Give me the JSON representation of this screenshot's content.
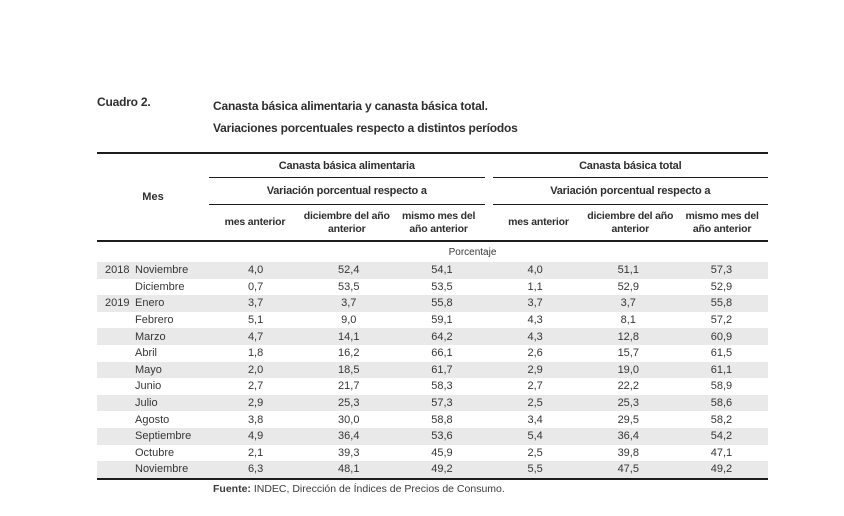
{
  "document": {
    "caption_label": "Cuadro 2.",
    "title_line1": "Canasta básica alimentaria y canasta básica total.",
    "title_line2": "Variaciones porcentuales respecto a distintos períodos",
    "source_label": "Fuente:",
    "source_text": " INDEC, Dirección de Índices de Precios de Consumo."
  },
  "table": {
    "mes_header": "Mes",
    "groups": [
      {
        "title": "Canasta básica alimentaria",
        "subtitle": "Variación porcentual respecto a"
      },
      {
        "title": "Canasta básica total",
        "subtitle": "Variación porcentual respecto a"
      }
    ],
    "subcolumns": [
      "mes anterior",
      "diciembre del año anterior",
      "mismo mes del año anterior"
    ],
    "unit_label": "Porcentaje",
    "rows": [
      {
        "year": "2018",
        "month": "Noviembre",
        "values": [
          "4,0",
          "52,4",
          "54,1",
          "4,0",
          "51,1",
          "57,3"
        ],
        "shaded": true
      },
      {
        "year": "",
        "month": "Diciembre",
        "values": [
          "0,7",
          "53,5",
          "53,5",
          "1,1",
          "52,9",
          "52,9"
        ],
        "shaded": false
      },
      {
        "year": "2019",
        "month": "Enero",
        "values": [
          "3,7",
          "3,7",
          "55,8",
          "3,7",
          "3,7",
          "55,8"
        ],
        "shaded": true
      },
      {
        "year": "",
        "month": "Febrero",
        "values": [
          "5,1",
          "9,0",
          "59,1",
          "4,3",
          "8,1",
          "57,2"
        ],
        "shaded": false
      },
      {
        "year": "",
        "month": "Marzo",
        "values": [
          "4,7",
          "14,1",
          "64,2",
          "4,3",
          "12,8",
          "60,9"
        ],
        "shaded": true
      },
      {
        "year": "",
        "month": "Abril",
        "values": [
          "1,8",
          "16,2",
          "66,1",
          "2,6",
          "15,7",
          "61,5"
        ],
        "shaded": false
      },
      {
        "year": "",
        "month": "Mayo",
        "values": [
          "2,0",
          "18,5",
          "61,7",
          "2,9",
          "19,0",
          "61,1"
        ],
        "shaded": true
      },
      {
        "year": "",
        "month": "Junio",
        "values": [
          "2,7",
          "21,7",
          "58,3",
          "2,7",
          "22,2",
          "58,9"
        ],
        "shaded": false
      },
      {
        "year": "",
        "month": "Julio",
        "values": [
          "2,9",
          "25,3",
          "57,3",
          "2,5",
          "25,3",
          "58,6"
        ],
        "shaded": true
      },
      {
        "year": "",
        "month": "Agosto",
        "values": [
          "3,8",
          "30,0",
          "58,8",
          "3,4",
          "29,5",
          "58,2"
        ],
        "shaded": false
      },
      {
        "year": "",
        "month": "Septiembre",
        "values": [
          "4,9",
          "36,4",
          "53,6",
          "5,4",
          "36,4",
          "54,2"
        ],
        "shaded": true
      },
      {
        "year": "",
        "month": "Octubre",
        "values": [
          "2,1",
          "39,3",
          "45,9",
          "2,5",
          "39,8",
          "47,1"
        ],
        "shaded": false
      },
      {
        "year": "",
        "month": "Noviembre",
        "values": [
          "6,3",
          "48,1",
          "49,2",
          "5,5",
          "47,5",
          "49,2"
        ],
        "shaded": true
      }
    ]
  },
  "colors": {
    "row_shading": "#e9e9e9",
    "rule": "#1c1c1c",
    "text": "#363636",
    "background": "#ffffff"
  }
}
